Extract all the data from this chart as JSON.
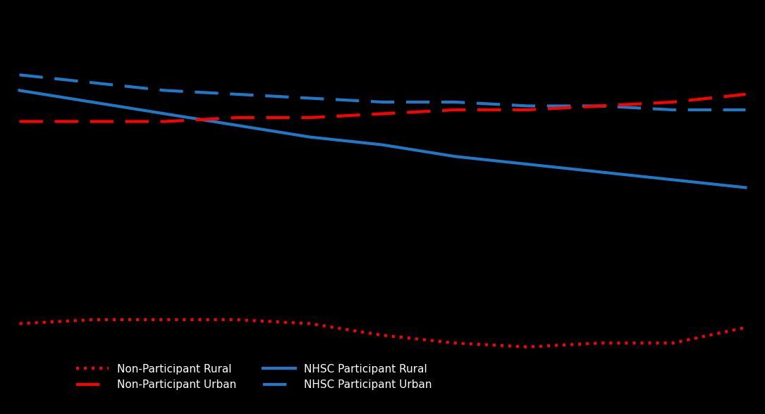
{
  "background_color": "#000000",
  "x": [
    0,
    1,
    2,
    3,
    4,
    5,
    6,
    7,
    8,
    9,
    10
  ],
  "blue_dashed": [
    0.88,
    0.87,
    0.86,
    0.855,
    0.85,
    0.845,
    0.845,
    0.84,
    0.84,
    0.835,
    0.835
  ],
  "blue_solid": [
    0.86,
    0.845,
    0.83,
    0.815,
    0.8,
    0.79,
    0.775,
    0.765,
    0.755,
    0.745,
    0.735
  ],
  "red_dashed": [
    0.82,
    0.82,
    0.82,
    0.825,
    0.825,
    0.83,
    0.835,
    0.835,
    0.84,
    0.845,
    0.855
  ],
  "red_dotted": [
    0.56,
    0.565,
    0.565,
    0.565,
    0.56,
    0.545,
    0.535,
    0.53,
    0.535,
    0.535,
    0.555
  ],
  "line_width": 3.0,
  "blue_color": "#1F78C8",
  "red_color": "#FF0000",
  "legend_labels": [
    "Non-Participant Rural",
    "Non-Participant Urban",
    "NHSC Participant Rural",
    "NHSC Participant Urban"
  ],
  "xlim": [
    -0.2,
    10.2
  ],
  "ylim": [
    0.45,
    0.97
  ],
  "figsize": [
    10.85,
    5.88
  ],
  "dpi": 100
}
